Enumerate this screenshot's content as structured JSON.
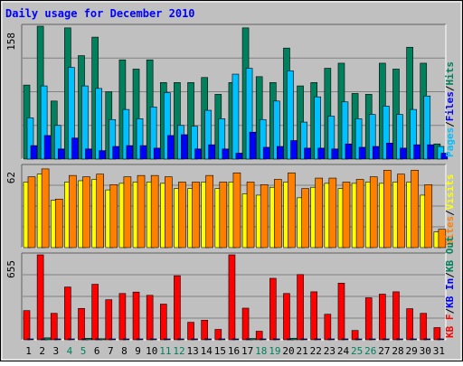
{
  "chart_data": {
    "type": "bar",
    "title": "Daily usage for December 2010",
    "categories": [
      "1",
      "2",
      "3",
      "4",
      "5",
      "6",
      "7",
      "8",
      "9",
      "10",
      "11",
      "12",
      "13",
      "14",
      "15",
      "16",
      "17",
      "18",
      "19",
      "20",
      "21",
      "22",
      "23",
      "24",
      "25",
      "26",
      "27",
      "28",
      "29",
      "30",
      "31"
    ],
    "weekend_days": [
      "4",
      "5",
      "11",
      "12",
      "18",
      "19",
      "25",
      "26"
    ],
    "panels": [
      {
        "id": "hits-files-pages",
        "ymax_label": "158",
        "ymax": 158,
        "legend": [
          {
            "label": "Pages",
            "color": "#00c0ff"
          },
          {
            "label": "Files",
            "color": "#0000ff"
          },
          {
            "label": "Hits",
            "color": "#00805c"
          }
        ],
        "separators": "/",
        "series": [
          {
            "name": "Hits",
            "color": "#00805c",
            "values": [
              88,
              158,
              69,
              156,
              123,
              145,
              80,
              118,
              107,
              118,
              91,
              91,
              91,
              97,
              77,
              91,
              156,
              98,
              91,
              132,
              87,
              91,
              108,
              114,
              78,
              77,
              114,
              107,
              133,
              114,
              18
            ]
          },
          {
            "name": "Files",
            "color": "#00c0ff",
            "values": [
              49,
              87,
              40,
              109,
              87,
              84,
              47,
              59,
              48,
              62,
              79,
              40,
              39,
              58,
              48,
              101,
              108,
              47,
              69,
              105,
              44,
              74,
              51,
              68,
              48,
              53,
              63,
              53,
              59,
              75,
              15
            ]
          },
          {
            "name": "Pages",
            "color": "#0000ff",
            "values": [
              16,
              28,
              12,
              25,
              12,
              10,
              15,
              16,
              16,
              13,
              28,
              29,
              12,
              17,
              12,
              7,
              32,
              14,
              15,
              22,
              13,
              13,
              12,
              18,
              14,
              15,
              19,
              13,
              17,
              17,
              7
            ]
          }
        ]
      },
      {
        "id": "visits-sites",
        "ymax_label": "62",
        "ymax": 62,
        "legend": [
          {
            "label": "Sites",
            "color": "#ff8000"
          },
          {
            "label": "Visits",
            "color": "#ffff00"
          }
        ],
        "separators": "/",
        "series": [
          {
            "name": "Visits",
            "color": "#ffff00",
            "values": [
              50,
              56,
              36,
              50,
              51,
              52,
              44,
              49,
              50,
              50,
              49,
              45,
              45,
              50,
              45,
              50,
              41,
              40,
              46,
              50,
              38,
              46,
              49,
              45,
              49,
              50,
              49,
              50,
              50,
              40,
              12
            ]
          },
          {
            "name": "Sites",
            "color": "#ff8000",
            "values": [
              54,
              60,
              37,
              55,
              54,
              56,
              48,
              54,
              55,
              55,
              54,
              50,
              50,
              55,
              50,
              57,
              50,
              48,
              52,
              57,
              45,
              53,
              53,
              50,
              52,
              54,
              59,
              56,
              59,
              48,
              14
            ]
          }
        ]
      },
      {
        "id": "kb",
        "ymax_label": "655",
        "ymax": 655,
        "legend": [
          {
            "label": "KB F",
            "color": "#ff0000"
          },
          {
            "label": "KB In",
            "color": "#0000ff"
          },
          {
            "label": "KB Out",
            "color": "#00805c"
          }
        ],
        "separators": "/",
        "series": [
          {
            "name": "KB F",
            "color": "#ff0000",
            "values": [
              225,
              655,
              204,
              407,
              242,
              428,
              309,
              357,
              368,
              343,
              275,
              494,
              135,
              151,
              80,
              655,
              244,
              66,
              474,
              357,
              503,
              370,
              197,
              437,
              72,
              324,
              352,
              370,
              240,
              204,
              94
            ]
          },
          {
            "name": "KB In",
            "color": "#0000ff",
            "values": [
              3,
              3,
              3,
              3,
              3,
              3,
              3,
              3,
              3,
              3,
              3,
              3,
              3,
              3,
              3,
              3,
              3,
              3,
              3,
              3,
              3,
              3,
              3,
              3,
              3,
              3,
              3,
              3,
              3,
              3,
              3
            ]
          },
          {
            "name": "KB Out",
            "color": "#00805c",
            "values": [
              0,
              15,
              0,
              0,
              12,
              8,
              0,
              0,
              0,
              0,
              0,
              0,
              0,
              0,
              0,
              0,
              10,
              0,
              0,
              12,
              0,
              0,
              0,
              0,
              0,
              0,
              0,
              0,
              0,
              0,
              0
            ]
          }
        ]
      }
    ],
    "grid": true
  }
}
